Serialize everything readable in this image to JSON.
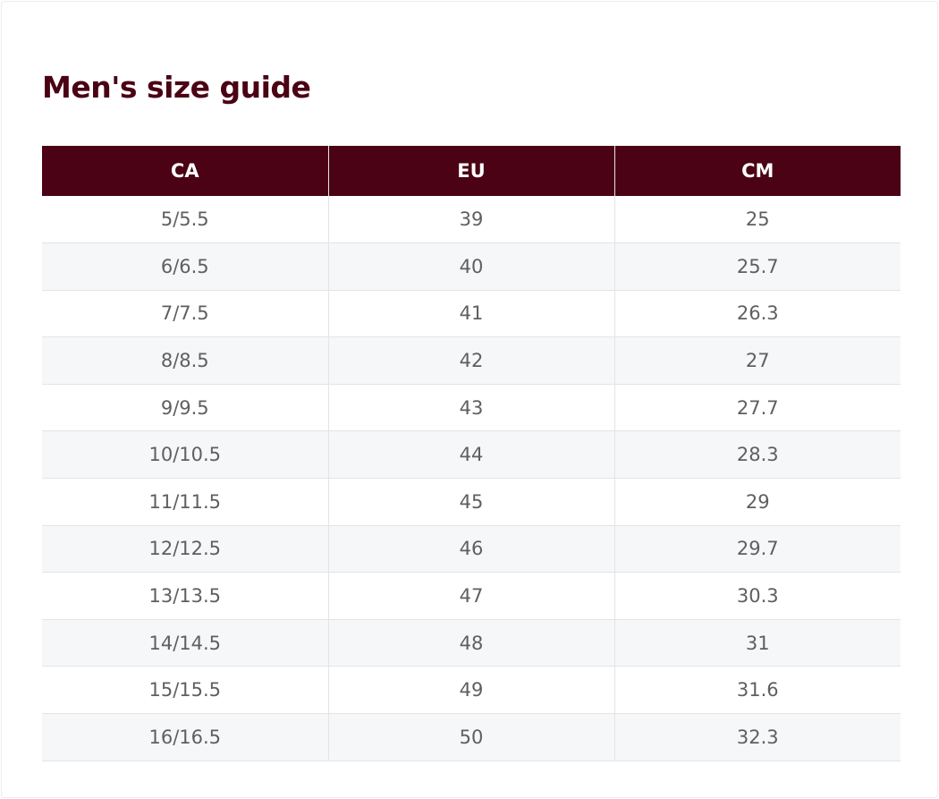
{
  "page": {
    "title": "Men's size guide"
  },
  "colors": {
    "header_bg": "#4a0214",
    "title_text": "#4a0214",
    "row_alt_bg": "#f6f7f9",
    "cell_text": "#5f5f5f"
  },
  "table": {
    "headers": [
      "CA",
      "EU",
      "CM"
    ],
    "rows": [
      [
        "5/5.5",
        "39",
        "25"
      ],
      [
        "6/6.5",
        "40",
        "25.7"
      ],
      [
        "7/7.5",
        "41",
        "26.3"
      ],
      [
        "8/8.5",
        "42",
        "27"
      ],
      [
        "9/9.5",
        "43",
        "27.7"
      ],
      [
        "10/10.5",
        "44",
        "28.3"
      ],
      [
        "11/11.5",
        "45",
        "29"
      ],
      [
        "12/12.5",
        "46",
        "29.7"
      ],
      [
        "13/13.5",
        "47",
        "30.3"
      ],
      [
        "14/14.5",
        "48",
        "31"
      ],
      [
        "15/15.5",
        "49",
        "31.6"
      ],
      [
        "16/16.5",
        "50",
        "32.3"
      ]
    ]
  }
}
